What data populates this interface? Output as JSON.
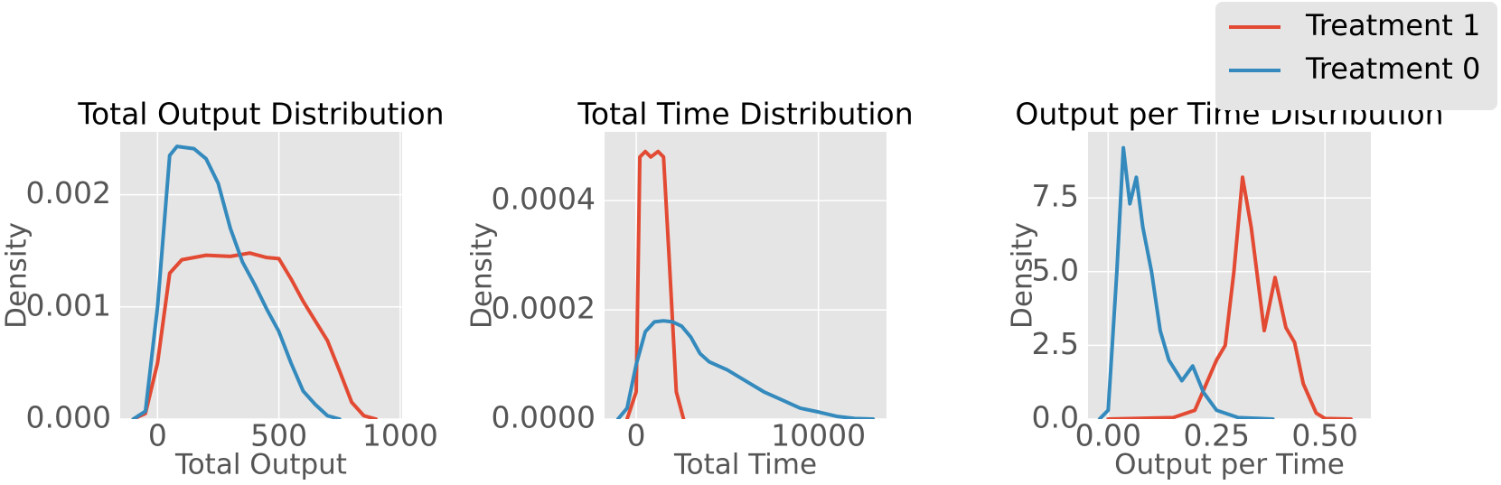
{
  "chart_data": [
    {
      "type": "line",
      "title": "Total Output Distribution",
      "xlabel": "Total Output",
      "ylabel": "Density",
      "xlim": [
        -154,
        1008
      ],
      "ylim": [
        0,
        0.00256
      ],
      "xticks": [
        0,
        500,
        1000
      ],
      "yticks": [
        {
          "value": 0,
          "label": "0.000"
        },
        {
          "value": 0.001,
          "label": "0.001"
        },
        {
          "value": 0.002,
          "label": "0.002"
        }
      ],
      "grid": true,
      "legend": "upper right",
      "series": [
        {
          "name": "Treatment 1",
          "color": "#E24A33",
          "x": [
            -100,
            -50,
            0,
            50,
            100,
            200,
            300,
            380,
            450,
            500,
            550,
            600,
            700,
            750,
            800,
            850,
            900
          ],
          "values": [
            0,
            5e-05,
            0.0005,
            0.0013,
            0.00142,
            0.00146,
            0.00145,
            0.00148,
            0.00144,
            0.00143,
            0.00125,
            0.00105,
            0.0007,
            0.00043,
            0.00015,
            3e-05,
            0
          ]
        },
        {
          "name": "Treatment 0",
          "color": "#348ABD",
          "x": [
            -100,
            -50,
            0,
            50,
            80,
            150,
            200,
            250,
            300,
            350,
            400,
            450,
            500,
            550,
            600,
            650,
            700,
            750
          ],
          "values": [
            0,
            7e-05,
            0.001,
            0.00235,
            0.00243,
            0.00241,
            0.00232,
            0.0021,
            0.0017,
            0.0014,
            0.0012,
            0.00098,
            0.00078,
            0.0005,
            0.00025,
            0.00013,
            3e-05,
            0
          ]
        }
      ]
    },
    {
      "type": "line",
      "title": "Total Time Distribution",
      "xlabel": "Total Time",
      "ylabel": "Density",
      "xlim": [
        -1737,
        13737
      ],
      "ylim": [
        0,
        0.000526
      ],
      "xticks": [
        0,
        10000
      ],
      "yticks": [
        {
          "value": 0,
          "label": "0.0000"
        },
        {
          "value": 0.0002,
          "label": "0.0002"
        },
        {
          "value": 0.0004,
          "label": "0.0004"
        }
      ],
      "grid": true,
      "series": [
        {
          "color": "#E24A33",
          "x": [
            -500,
            0,
            200,
            500,
            800,
            1200,
            1500,
            1800,
            2200,
            2600
          ],
          "values": [
            0,
            5e-05,
            0.00048,
            0.00049,
            0.00048,
            0.00049,
            0.00048,
            0.0003,
            5e-05,
            0
          ]
        },
        {
          "color": "#348ABD",
          "x": [
            -1000,
            -500,
            0,
            500,
            1000,
            1500,
            2000,
            2500,
            3000,
            3500,
            4000,
            5000,
            6000,
            7000,
            8000,
            9000,
            10000,
            11000,
            12000,
            13000
          ],
          "values": [
            0,
            2e-05,
            0.0001,
            0.00016,
            0.000178,
            0.00018,
            0.000178,
            0.00017,
            0.00015,
            0.00012,
            0.000105,
            9e-05,
            7e-05,
            5e-05,
            3.5e-05,
            2e-05,
            1.3e-05,
            5e-06,
            1e-06,
            0
          ]
        }
      ]
    },
    {
      "type": "line",
      "title": "Output per Time Distribution",
      "xlabel": "Output per Time",
      "ylabel": "Density",
      "xlim": [
        -0.0465,
        0.606
      ],
      "ylim": [
        0,
        9.74
      ],
      "xticks": [
        {
          "value": 0,
          "label": "0.00"
        },
        {
          "value": 0.25,
          "label": "0.25"
        },
        {
          "value": 0.5,
          "label": "0.50"
        }
      ],
      "yticks": [
        {
          "value": 0,
          "label": "0.0"
        },
        2.5,
        {
          "value": 5,
          "label": "5.0"
        },
        7.5
      ],
      "grid": true,
      "series": [
        {
          "color": "#E24A33",
          "x": [
            0,
            0.15,
            0.2,
            0.25,
            0.27,
            0.29,
            0.31,
            0.33,
            0.36,
            0.385,
            0.41,
            0.43,
            0.45,
            0.48,
            0.5,
            0.56
          ],
          "values": [
            0,
            0.05,
            0.3,
            2.0,
            2.5,
            5,
            8.2,
            6.5,
            3.0,
            4.8,
            3.1,
            2.6,
            1.2,
            0.2,
            0.02,
            0
          ]
        },
        {
          "color": "#348ABD",
          "x": [
            -0.02,
            0,
            0.02,
            0.035,
            0.05,
            0.065,
            0.08,
            0.1,
            0.12,
            0.14,
            0.17,
            0.195,
            0.22,
            0.25,
            0.3,
            0.38
          ],
          "values": [
            0,
            0.3,
            5,
            9.2,
            7.3,
            8.2,
            6.5,
            5.0,
            3.0,
            2.0,
            1.3,
            1.8,
            0.9,
            0.3,
            0.05,
            0
          ]
        }
      ]
    }
  ]
}
